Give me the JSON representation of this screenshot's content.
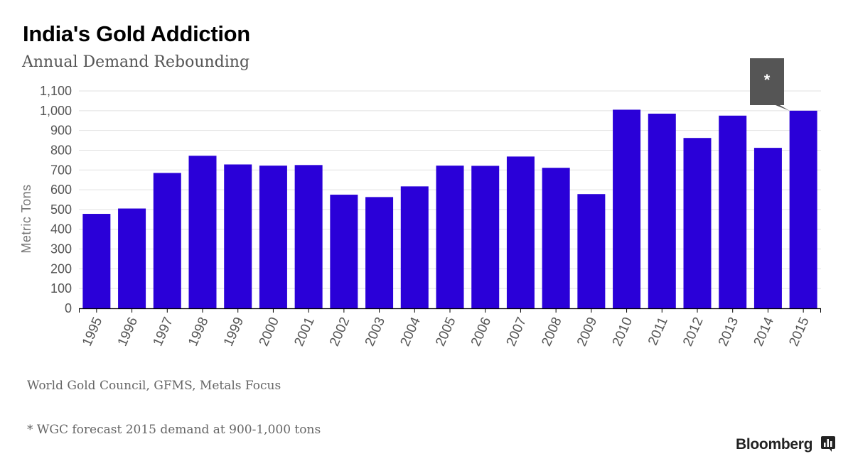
{
  "header": {
    "title": "India's Gold Addiction",
    "subtitle": "Annual Demand Rebounding"
  },
  "chart_data": {
    "type": "bar",
    "title": "India's Gold Addiction",
    "subtitle": "Annual Demand Rebounding",
    "xlabel": "",
    "ylabel": "Metric Tons",
    "ylim": [
      0,
      1100
    ],
    "yticks": [
      0,
      100,
      200,
      300,
      400,
      500,
      600,
      700,
      800,
      900,
      1000,
      1100
    ],
    "ytick_labels": [
      "0",
      "100",
      "200",
      "300",
      "400",
      "500",
      "600",
      "700",
      "800",
      "900",
      "1,000",
      "1,100"
    ],
    "grid": true,
    "bar_color": "#2a00d8",
    "categories": [
      "1995",
      "1996",
      "1997",
      "1998",
      "1999",
      "2000",
      "2001",
      "2002",
      "2003",
      "2004",
      "2005",
      "2006",
      "2007",
      "2008",
      "2009",
      "2010",
      "2011",
      "2012",
      "2013",
      "2014",
      "2015"
    ],
    "values": [
      478,
      505,
      685,
      772,
      728,
      722,
      725,
      575,
      563,
      617,
      722,
      721,
      768,
      711,
      578,
      1005,
      985,
      862,
      975,
      812,
      1000
    ],
    "annotation": {
      "category": "2015",
      "label": "*"
    }
  },
  "footer": {
    "source": "World Gold Council, GFMS, Metals Focus",
    "footnote": "* WGC forecast 2015 demand at 900-1,000 tons",
    "brand": "Bloomberg"
  }
}
